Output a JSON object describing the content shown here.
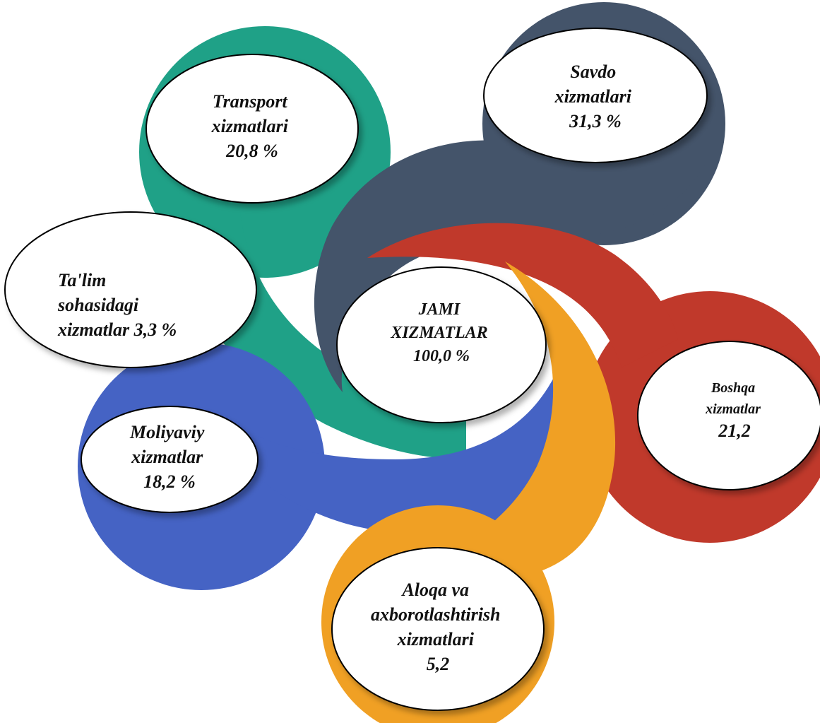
{
  "center": {
    "lines": [
      "JAMI",
      "XIZMATLAR",
      "100,0 %"
    ]
  },
  "segments": [
    {
      "id": "savdo",
      "lines": [
        "Savdo",
        "xizmatlari",
        "31,3 %"
      ],
      "color": "#44546a"
    },
    {
      "id": "transport",
      "lines": [
        "Transport",
        "xizmatlari",
        "20,8 %"
      ],
      "color": "#1fa187"
    },
    {
      "id": "talim",
      "lines": [
        "Ta'lim",
        "sohasidagi",
        "xizmatlar 3,3 %"
      ],
      "color": "#1fa187"
    },
    {
      "id": "moliyaviy",
      "lines": [
        "Moliyaviy",
        "xizmatlar",
        "18,2 %"
      ],
      "color": "#4563c4"
    },
    {
      "id": "aloqa",
      "lines": [
        "Aloqa va",
        "axborotlashtirish",
        "xizmatlari",
        "5,2"
      ],
      "color": "#f0a024"
    },
    {
      "id": "boshqa",
      "lines": [
        "Boshqa",
        "xizmatlar",
        "21,2"
      ],
      "color": "#c0392b"
    }
  ]
}
